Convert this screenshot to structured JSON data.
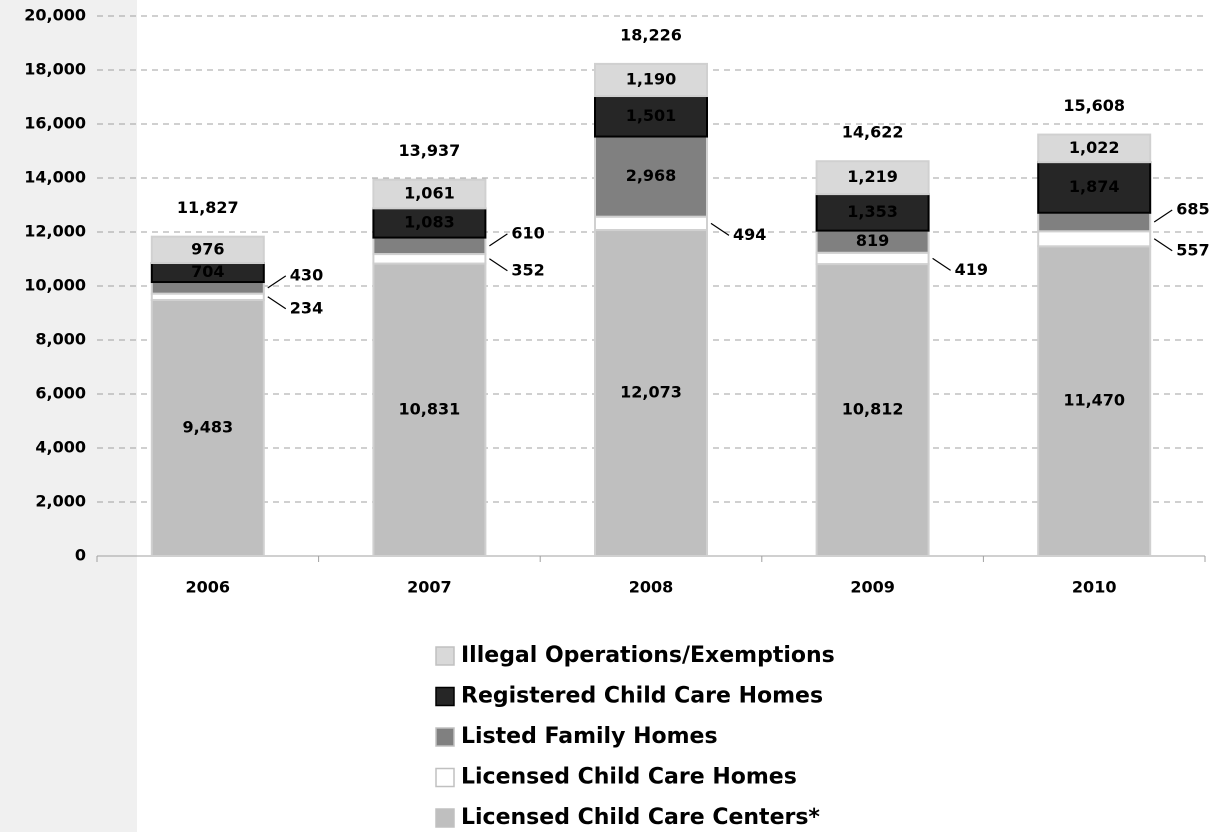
{
  "chart_data": {
    "type": "stacked_bar",
    "categories": [
      "2006",
      "2007",
      "2008",
      "2009",
      "2010"
    ],
    "series": [
      {
        "name": "Licensed Child Care Centers*",
        "color": "#bfbfbf",
        "values": [
          9483,
          10831,
          12073,
          10812,
          11470
        ],
        "value_labels": [
          "9,483",
          "10,831",
          "12,073",
          "10,812",
          "11,470"
        ]
      },
      {
        "name": "Licensed Child Care Homes",
        "color": "#ffffff",
        "values": [
          234,
          352,
          494,
          419,
          557
        ],
        "value_labels": [
          "234",
          "352",
          "494",
          "419",
          "557"
        ]
      },
      {
        "name": "Listed Family Homes",
        "color": "#808080",
        "values": [
          430,
          610,
          2968,
          819,
          685
        ],
        "value_labels": [
          "430",
          "610",
          "2,968",
          "819",
          "685"
        ]
      },
      {
        "name": "Registered Child Care Homes",
        "color": "#262626",
        "values": [
          704,
          1083,
          1501,
          1353,
          1874
        ],
        "value_labels": [
          "704",
          "1,083",
          "1,501",
          "1,353",
          "1,874"
        ]
      },
      {
        "name": "Illegal Operations/Exemptions",
        "color": "#d9d9d9",
        "values": [
          976,
          1061,
          1190,
          1219,
          1022
        ],
        "value_labels": [
          "976",
          "1,061",
          "1,190",
          "1,219",
          "1,022"
        ]
      }
    ],
    "totals": {
      "values": [
        11827,
        13937,
        18226,
        14622,
        15608
      ],
      "value_labels": [
        "11,827",
        "13,937",
        "18,226",
        "14,622",
        "15,608"
      ]
    },
    "ylim": [
      0,
      20000
    ],
    "yticks": [
      0,
      {
        "value": 2000,
        "label": "2,000"
      },
      {
        "value": 4000,
        "label": "4,000"
      },
      {
        "value": 6000,
        "label": "6,000"
      },
      {
        "value": 8000,
        "label": "8,000"
      },
      {
        "value": 10000,
        "label": "10,000"
      },
      {
        "value": 12000,
        "label": "12,000"
      },
      {
        "value": 14000,
        "label": "14,000"
      },
      {
        "value": 16000,
        "label": "16,000"
      },
      {
        "value": 18000,
        "label": "18,000"
      },
      {
        "value": 20000,
        "label": "20,000"
      }
    ],
    "grid": true
  }
}
